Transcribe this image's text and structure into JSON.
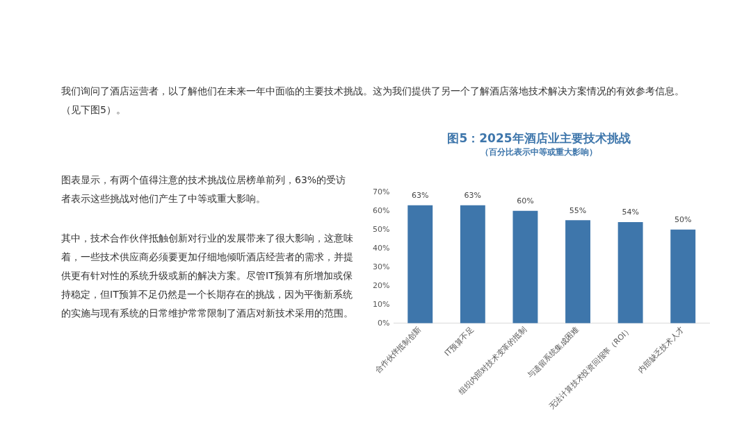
{
  "chart_data": {
    "type": "bar",
    "title": "图5：2025年酒店业主要技术挑战",
    "subtitle": "（百分比表示中等或重大影响）",
    "categories": [
      "合作伙伴抵制创新",
      "IT预算不足",
      "组织内部对技术变革的抵制",
      "与遗留系统集成困难",
      "无法计算技术投资回报率（ROI）",
      "内部缺乏技术人才"
    ],
    "values": [
      63,
      63,
      60,
      55,
      54,
      50
    ],
    "value_labels": [
      "63%",
      "63%",
      "60%",
      "55%",
      "54%",
      "50%"
    ],
    "color": "#3e76ab",
    "ylim": [
      0,
      70
    ],
    "yticks": [
      {
        "value": 0,
        "label": "0%"
      },
      {
        "value": 10,
        "label": "10%"
      },
      {
        "value": 20,
        "label": "20%"
      },
      {
        "value": 30,
        "label": "30%"
      },
      {
        "value": 40,
        "label": "40%"
      },
      {
        "value": 50,
        "label": "50%"
      },
      {
        "value": 60,
        "label": "60%"
      },
      {
        "value": 70,
        "label": "70%"
      }
    ],
    "grid": false,
    "legend": false,
    "annotations": [
      "我们询问了酒店运营者，以了解他们在未来一年中面临的主要技术挑战。这为我们提供了另一个了解酒店落地技术解决方案情况的有效参考信息。（见下图5）。",
      "图表显示，有两个值得注意的技术挑战位居榜单前列，63%的受访者表示这些挑战对他们产生了中等或重大影响。",
      "其中，技术合作伙伴抵触创新对行业的发展带来了很大影响，这意味着，一些技术供应商必须要更加仔细地倾听酒店经营者的需求，并提供更有针对性的系统升级或新的解决方案。尽管IT预算有所增加或保持稳定，但IT预算不足仍然是一个长期存在的挑战，因为平衡新系统的实施与现有系统的日常维护常常限制了酒店对新技术采用的范围。"
    ]
  }
}
